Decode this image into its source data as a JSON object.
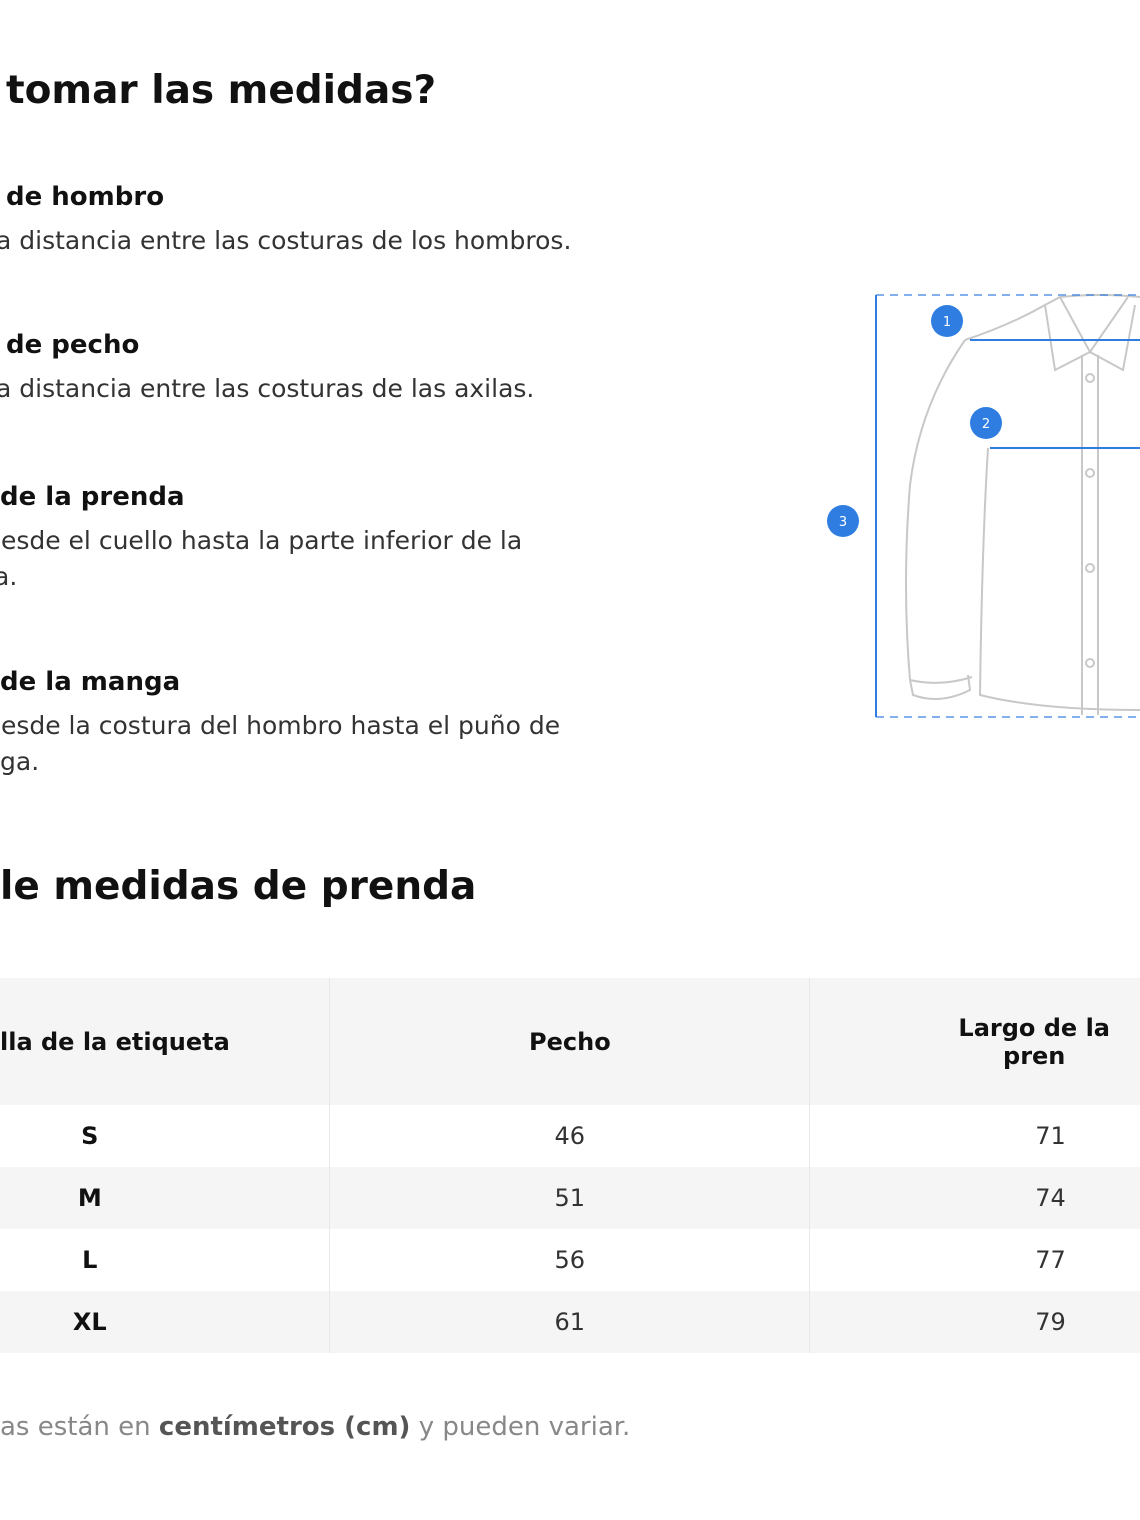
{
  "how_to": {
    "title": "tomar las medidas?",
    "items": [
      {
        "heading": "de hombro",
        "lines": [
          "a distancia entre las costuras de los hombros."
        ]
      },
      {
        "heading": "de pecho",
        "lines": [
          "a distancia entre las costuras de las axilas."
        ]
      },
      {
        "heading": "de la prenda",
        "lines": [
          "lesde el cuello hasta la parte inferior de la",
          "a."
        ]
      },
      {
        "heading": "de la manga",
        "lines": [
          "lesde la costura del hombro hasta el puño de",
          "ga."
        ]
      }
    ]
  },
  "diagram": {
    "markers": [
      "1",
      "2",
      "3"
    ],
    "accent": "#2f7de1",
    "outline": "#c8c8c8"
  },
  "size_table": {
    "title": "le medidas de prenda",
    "headers": [
      "lla de la etiqueta",
      "Pecho",
      "Largo de la pren"
    ],
    "rows": [
      {
        "size": "S",
        "chest": "46",
        "length": "71"
      },
      {
        "size": "M",
        "chest": "51",
        "length": "74"
      },
      {
        "size": "L",
        "chest": "56",
        "length": "77"
      },
      {
        "size": "XL",
        "chest": "61",
        "length": "79"
      }
    ]
  },
  "footnote": {
    "pre": "as están en ",
    "bold": "centímetros (cm)",
    "post": " y pueden variar."
  }
}
